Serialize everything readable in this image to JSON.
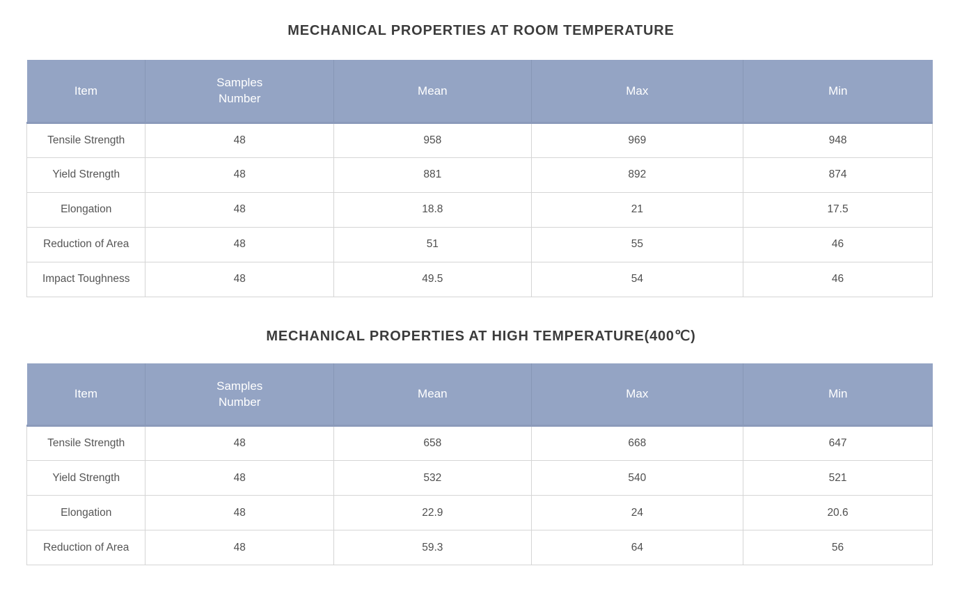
{
  "page": {
    "background": "#ffffff"
  },
  "colors": {
    "header_background": "#94a4c4",
    "header_divider": "#8797b6",
    "header_bottom_band": "#8b9aba",
    "body_cell_border": "#d5d5d5",
    "title_text": "#3c3c3c",
    "header_text": "#ffffff",
    "body_text": "#4e4e4e"
  },
  "tables": [
    {
      "title": "MECHANICAL PROPERTIES AT ROOM TEMPERATURE",
      "columns": [
        "Item",
        "Samples\nNumber",
        "Mean",
        "Max",
        "Min"
      ],
      "rows": [
        [
          "Tensile Strength",
          "48",
          "958",
          "969",
          "948"
        ],
        [
          "Yield Strength",
          "48",
          "881",
          "892",
          "874"
        ],
        [
          "Elongation",
          "48",
          "18.8",
          "21",
          "17.5"
        ],
        [
          "Reduction of Area",
          "48",
          "51",
          "55",
          "46"
        ],
        [
          "Impact Toughness",
          "48",
          "49.5",
          "54",
          "46"
        ]
      ]
    },
    {
      "title": "MECHANICAL PROPERTIES AT HIGH TEMPERATURE(400℃)",
      "columns": [
        "Item",
        "Samples\nNumber",
        "Mean",
        "Max",
        "Min"
      ],
      "rows": [
        [
          "Tensile Strength",
          "48",
          "658",
          "668",
          "647"
        ],
        [
          "Yield Strength",
          "48",
          "532",
          "540",
          "521"
        ],
        [
          "Elongation",
          "48",
          "22.9",
          "24",
          "20.6"
        ],
        [
          "Reduction of Area",
          "48",
          "59.3",
          "64",
          "56"
        ]
      ]
    }
  ]
}
